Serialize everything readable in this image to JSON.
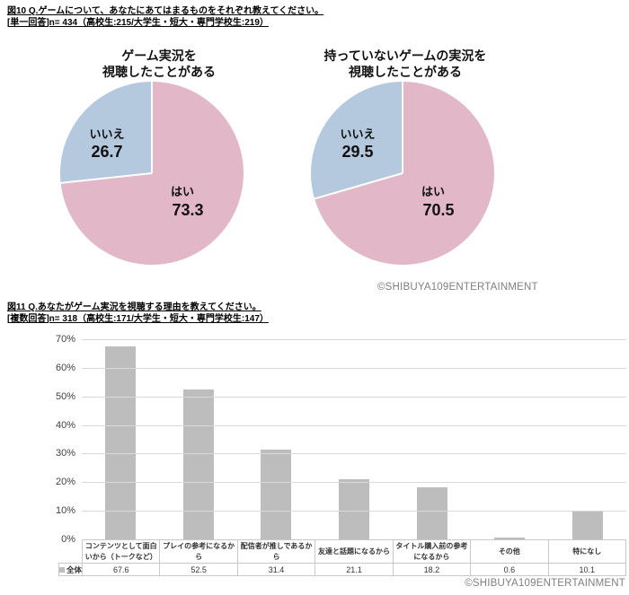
{
  "figure10": {
    "heading_line1": "図10 Q.ゲームについて、あなたにあてはまるものをそれぞれ教えてください。",
    "heading_line2": "[単一回答]n= 434（高校生:215/大学生・短大・専門学校生:219）",
    "copyright": "©SHIBUYA109ENTERTAINMENT"
  },
  "figure11": {
    "heading_line1": "図11 Q.あなたがゲーム実況を視聴する理由を教えてください。",
    "heading_line2": "[複数回答]n= 318（高校生:171/大学生・短大・専門学校生:147）",
    "copyright": "©SHIBUYA109ENTERTAINMENT"
  },
  "colors": {
    "pie_yes": "#e2b8c8",
    "pie_no": "#b4c8de",
    "bar": "#bdbdbd",
    "gridline": "#d9d9d9",
    "axis_text": "#3f3f3f",
    "copyright_text": "#7f7f7f"
  },
  "chart_data": [
    {
      "type": "pie",
      "title_lines": [
        "ゲーム実況を",
        "視聴したことがある"
      ],
      "labels": [
        "はい",
        "いいえ"
      ],
      "values": [
        73.3,
        26.7
      ],
      "colors": [
        "#e2b8c8",
        "#b4c8de"
      ],
      "start_angle_deg": 0,
      "direction": "clockwise"
    },
    {
      "type": "pie",
      "title_lines": [
        "持っていないゲームの実況を",
        "視聴したことがある"
      ],
      "labels": [
        "はい",
        "いいえ"
      ],
      "values": [
        70.5,
        29.5
      ],
      "colors": [
        "#e2b8c8",
        "#b4c8de"
      ],
      "start_angle_deg": 0,
      "direction": "clockwise"
    },
    {
      "type": "bar",
      "title": "",
      "categories": [
        "コンテンツとして面白いから（トークなど）",
        "プレイの参考になるから",
        "配信者が推しであるから",
        "友達と話題になるから",
        "タイトル購入前の参考になるから",
        "その他",
        "特になし"
      ],
      "series": [
        {
          "name": "全体",
          "values": [
            67.6,
            52.5,
            31.4,
            21.1,
            18.2,
            0.6,
            10.1
          ]
        }
      ],
      "xlabel": "",
      "ylabel": "",
      "ylim": [
        0,
        70
      ],
      "ytick_step": 10,
      "ytick_suffix": "%",
      "grid": true,
      "bar_color": "#bdbdbd",
      "legend_position": "table-row"
    }
  ]
}
